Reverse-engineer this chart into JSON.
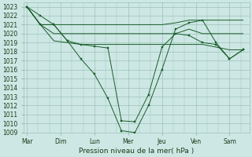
{
  "background_color": "#cde8e4",
  "grid_color": "#9dbfbb",
  "line_color": "#1a5c2a",
  "x_labels": [
    "Mar",
    "Dim",
    "Lun",
    "Mer",
    "Jeu",
    "Ven",
    "Sam"
  ],
  "xlabel": "Pression niveau de la mer( hPa )",
  "ylim": [
    1009,
    1023.5
  ],
  "yticks": [
    1009,
    1010,
    1011,
    1012,
    1013,
    1014,
    1015,
    1016,
    1017,
    1018,
    1019,
    1020,
    1021,
    1022,
    1023
  ],
  "tick_fontsize": 5.5,
  "xlabel_fontsize": 6.5,
  "line1_x": [
    0,
    0.4,
    0.8,
    1.2,
    1.6,
    2.0,
    2.4,
    2.8,
    3.2,
    3.6,
    4.0,
    4.4,
    4.8,
    5.2,
    5.6,
    6.0,
    6.4
  ],
  "line1_y": [
    1023,
    1022,
    1021,
    1019.2,
    1017.2,
    1015.5,
    1012.8,
    1009.2,
    1009.0,
    1012.0,
    1016.0,
    1020.5,
    1021.2,
    1021.5,
    1019.0,
    1017.2,
    1018.2
  ],
  "line2_x": [
    0,
    0.4,
    0.8,
    1.2,
    1.6,
    2.0,
    2.4,
    2.8,
    3.2,
    3.6,
    4.0,
    4.4,
    4.8,
    5.2,
    5.6,
    6.0,
    6.4
  ],
  "line2_y": [
    1023,
    1021,
    1021,
    1019.2,
    1018.8,
    1018.6,
    1018.4,
    1010.3,
    1010.2,
    1013.2,
    1018.5,
    1020.0,
    1019.8,
    1019.0,
    1018.8,
    1017.2,
    1018.2
  ],
  "flat1_x": [
    0,
    0.4,
    0.8,
    1.2,
    1.6,
    2.0,
    2.4,
    2.8,
    3.2,
    3.6,
    4.0,
    4.4,
    4.8,
    5.2,
    5.6,
    6.0,
    6.4
  ],
  "flat1_y": [
    1023,
    1021,
    1021,
    1021,
    1021,
    1021,
    1021,
    1021,
    1021,
    1021,
    1021,
    1021.2,
    1021.5,
    1021.5,
    1021.5,
    1021.5,
    1021.5
  ],
  "flat2_x": [
    0,
    0.4,
    0.8,
    1.2,
    1.6,
    2.0,
    2.4,
    2.8,
    3.2,
    3.6,
    4.0,
    4.4,
    4.8,
    5.2,
    5.6,
    6.0,
    6.4
  ],
  "flat2_y": [
    1023,
    1021,
    1020,
    1020,
    1020,
    1020,
    1020,
    1020,
    1020,
    1020,
    1020,
    1020,
    1020.5,
    1020.0,
    1020.0,
    1020.0,
    1020.0
  ],
  "flat3_x": [
    0,
    0.4,
    0.8,
    1.2,
    1.6,
    2.0,
    2.4,
    2.8,
    3.2,
    3.6,
    4.0,
    4.4,
    4.8,
    5.2,
    5.6,
    6.0,
    6.4
  ],
  "flat3_y": [
    1023,
    1021,
    1019.2,
    1019.0,
    1018.8,
    1018.8,
    1018.8,
    1018.8,
    1018.8,
    1018.8,
    1018.8,
    1018.8,
    1018.8,
    1018.8,
    1018.5,
    1018.2,
    1018.2
  ]
}
